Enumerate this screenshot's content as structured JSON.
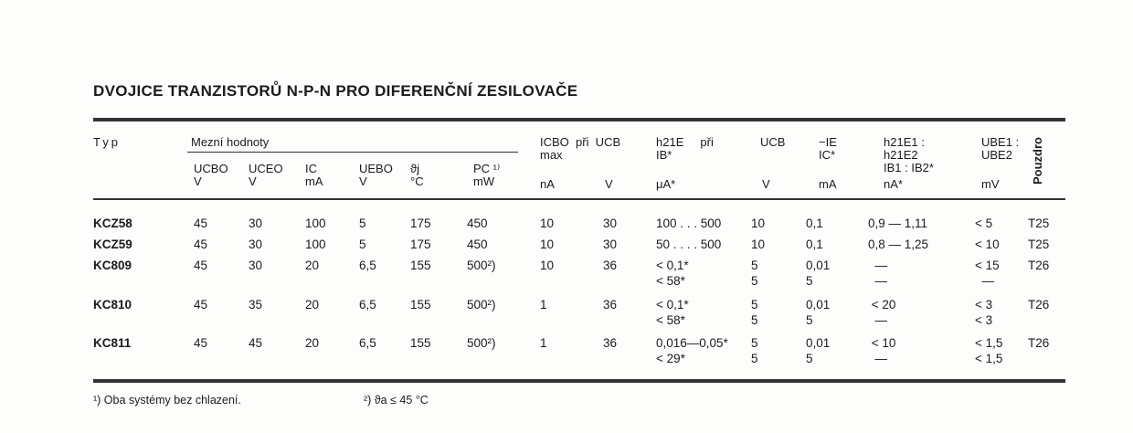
{
  "title": "DVOJICE TRANZISTORŮ N-P-N PRO DIFERENČNÍ ZESILOVAČE",
  "header": {
    "typ": "Typ",
    "mezni": "Mezní hodnoty",
    "ucbo": "UCBO\nV",
    "uceo": "UCEO\nV",
    "ic": "IC\nmA",
    "uebo": "UEBO\nV",
    "tj": "ϑj\n°C",
    "pc": "PC ¹⁾\nmW",
    "icbo": "ICBO  při  UCB\nmax",
    "icbo_unit": "nA",
    "ucb1_unit": "V",
    "h21e": "h21E     při\nIB*",
    "h21e_unit": "μA*",
    "ucb2": "UCB",
    "ucb2_unit": "V",
    "ie": "−IE\nIC*",
    "ie_unit": "mA",
    "ratio": "h21E1 :\nh21E2\nIB1 : IB2*",
    "ratio_unit": "nA*",
    "ube": "UBE1 :\nUBE2",
    "ube_unit": "mV",
    "pouzdro": "Pouzdro"
  },
  "rows": [
    {
      "typ": "KCZ58",
      "ucbo": "45",
      "uceo": "30",
      "ic": "100",
      "uebo": "5",
      "tj": "175",
      "pc": "450",
      "icbo": "10",
      "ucb": "30",
      "h21e": "100 . . . 500",
      "ucb2": "10",
      "ie": "0,1",
      "ratio": "0,9 — 1,11",
      "ube": "< 5",
      "pouzdro": "T25"
    },
    {
      "typ": "KCZ59",
      "ucbo": "45",
      "uceo": "30",
      "ic": "100",
      "uebo": "5",
      "tj": "175",
      "pc": "450",
      "icbo": "10",
      "ucb": "30",
      "h21e": "50 . . . . 500",
      "ucb2": "10",
      "ie": "0,1",
      "ratio": "0,8 — 1,25",
      "ube": "< 10",
      "pouzdro": "T25"
    },
    {
      "typ": "KC809",
      "ucbo": "45",
      "uceo": "30",
      "ic": "20",
      "uebo": "6,5",
      "tj": "155",
      "pc": "500²)",
      "icbo": "10",
      "ucb": "36",
      "h21e": "< 0,1*\n< 58*",
      "ucb2": "5\n5",
      "ie": "0,01\n5",
      "ratio": "  —\n  —",
      "ube": "< 15\n  —",
      "pouzdro": "T26"
    },
    {
      "typ": "KC810",
      "ucbo": "45",
      "uceo": "35",
      "ic": "20",
      "uebo": "6,5",
      "tj": "155",
      "pc": "500²)",
      "icbo": "1",
      "ucb": "36",
      "h21e": "< 0,1*\n< 58*",
      "ucb2": "5\n5",
      "ie": "0,01\n5",
      "ratio": " < 20\n  —",
      "ube": "< 3\n< 3",
      "pouzdro": "T26"
    },
    {
      "typ": "KC811",
      "ucbo": "45",
      "uceo": "45",
      "ic": "20",
      "uebo": "6,5",
      "tj": "155",
      "pc": "500²)",
      "icbo": "1",
      "ucb": "36",
      "h21e": "0,016—0,05*\n< 29*",
      "ucb2": "5\n5",
      "ie": "0,01\n5",
      "ratio": " < 10\n  —",
      "ube": "< 1,5\n< 1,5",
      "pouzdro": "T26"
    }
  ],
  "footnotes": {
    "f1": "¹) Oba systémy bez chlazení.",
    "f2": "²) ϑa ≤ 45 °C"
  }
}
